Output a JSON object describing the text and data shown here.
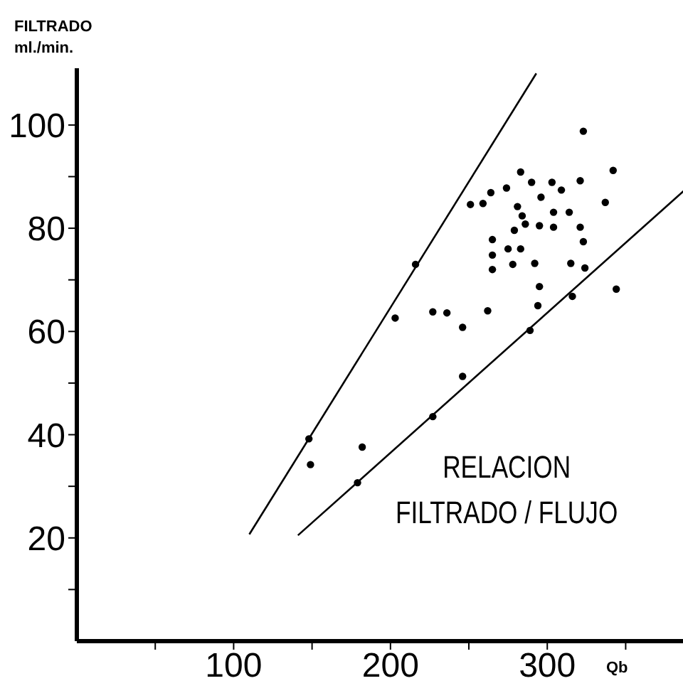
{
  "chart_data": {
    "type": "scatter",
    "xlabel": "Qb",
    "ylabel": "FILTRADO\nml./min.",
    "xlim": [
      0,
      392
    ],
    "ylim": [
      0,
      111
    ],
    "xticks": [
      {
        "value": 50,
        "label": null
      },
      100,
      {
        "value": 150,
        "label": null
      },
      200,
      {
        "value": 250,
        "label": null
      },
      300,
      {
        "value": 350,
        "label": null
      }
    ],
    "yticks": [
      {
        "value": 10,
        "label": null
      },
      20,
      {
        "value": 30,
        "label": null
      },
      40,
      {
        "value": 50,
        "label": null
      },
      60,
      {
        "value": 70,
        "label": null
      },
      80,
      {
        "value": 90,
        "label": null
      },
      100
    ],
    "annotations": [
      "RELACION\nFILTRADO / FLUJO"
    ],
    "series": [
      {
        "marker": "circle",
        "color": "#000000",
        "x": [
          148,
          149,
          182,
          179,
          216,
          203,
          227,
          236,
          246,
          246,
          227,
          251,
          259,
          264,
          274,
          283,
          290,
          303,
          309,
          321,
          323,
          342,
          337,
          265,
          265,
          265,
          275,
          283,
          278,
          292,
          284,
          286,
          295,
          304,
          304,
          314,
          321,
          323,
          324,
          315,
          295,
          294,
          262,
          289,
          316,
          344,
          281,
          296,
          279
        ],
        "values": [
          39.2,
          34.2,
          37.6,
          30.7,
          73,
          62.6,
          63.8,
          63.6,
          60.8,
          51.3,
          43.5,
          84.6,
          84.8,
          86.9,
          87.8,
          90.9,
          88.9,
          88.9,
          87.4,
          89.2,
          98.8,
          91.2,
          85,
          77.8,
          74.8,
          72,
          76,
          76,
          73,
          73.2,
          82.4,
          80.8,
          80.5,
          80.2,
          83.1,
          83.1,
          80.2,
          77.4,
          72.3,
          73.2,
          68.7,
          65,
          64,
          60.2,
          66.8,
          68.2,
          84.2,
          86,
          79.6
        ]
      },
      {
        "type": "line",
        "color": "#000000",
        "x": [
          110,
          293
        ],
        "values": [
          20.7,
          110
        ]
      },
      {
        "type": "line",
        "color": "#000000",
        "x": [
          141,
          391
        ],
        "values": [
          20.5,
          88.3
        ]
      }
    ]
  }
}
